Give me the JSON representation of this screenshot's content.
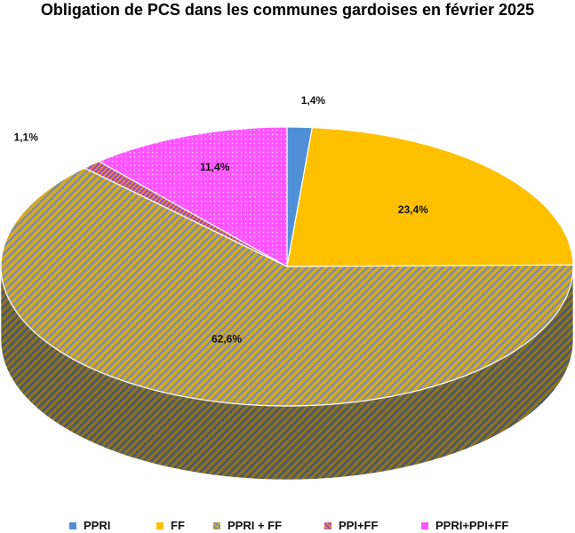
{
  "chart_data": {
    "type": "pie",
    "title": "Obligation de PCS dans les communes gardoises en février 2025",
    "legend_position": "bottom",
    "slices": [
      {
        "name": "PPRI",
        "value": 1.4,
        "label": "1,4%",
        "color": "#4f8fd6",
        "pattern": "solid"
      },
      {
        "name": "FF",
        "value": 23.4,
        "label": "23,4%",
        "color": "#ffc000",
        "pattern": "solid"
      },
      {
        "name": "PPRI + FF",
        "value": 62.6,
        "label": "62,6%",
        "color": "#c9a530",
        "pattern": "diagonal-stripes",
        "stripe_colors": [
          "#d8aa1c",
          "#7a8cb0"
        ]
      },
      {
        "name": "PPI+FF",
        "value": 1.1,
        "label": "1,1%",
        "color": "#b05aa8",
        "pattern": "diagonal-stripes",
        "stripe_colors": [
          "#9a4fc4",
          "#f08040"
        ]
      },
      {
        "name": "PPRI+PPI+FF",
        "value": 11.4,
        "label": "11,4%",
        "color": "#ff55ff",
        "pattern": "dots"
      }
    ]
  }
}
